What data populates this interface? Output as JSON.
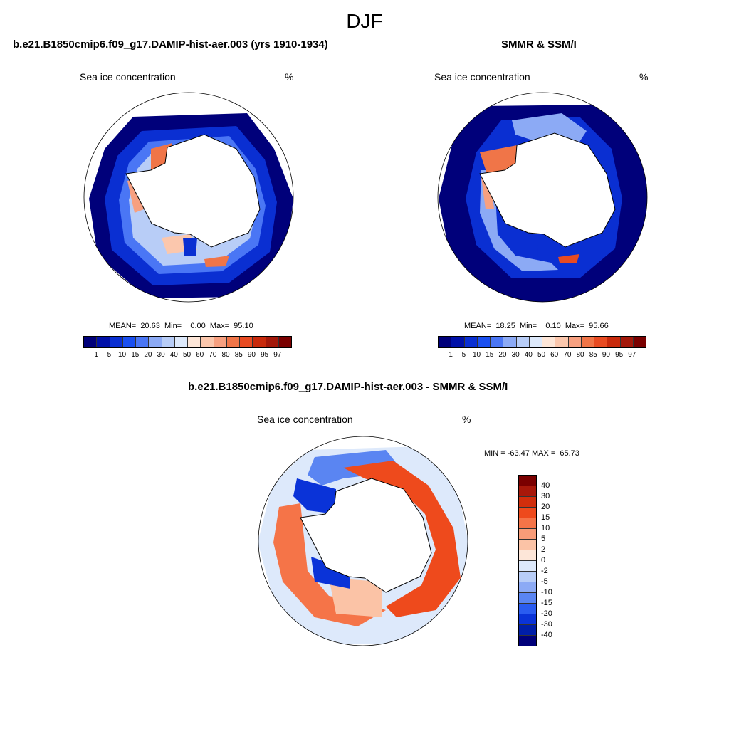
{
  "figure_title": "DJF",
  "panel_model": {
    "title": "b.e21.B1850cmip6.f09_g17.DAMIP-hist-aer.003 (yrs 1910-1934)",
    "variable": "Sea ice concentration",
    "unit": "%",
    "stats": "MEAN=  20.63  Min=    0.00  Max=  95.10"
  },
  "panel_obs": {
    "title": "SMMR & SSM/I",
    "variable": "Sea ice concentration",
    "unit": "%",
    "stats": "MEAN=  18.25  Min=    0.10  Max=  95.66"
  },
  "panel_diff": {
    "title": "b.e21.B1850cmip6.f09_g17.DAMIP-hist-aer.003 - SMMR & SSM/I",
    "variable": "Sea ice concentration",
    "unit": "%",
    "minmax": "MIN = -63.47 MAX =  65.73"
  },
  "conc_colorbar": {
    "labels": [
      "1",
      "5",
      "10",
      "15",
      "20",
      "30",
      "40",
      "50",
      "60",
      "70",
      "80",
      "85",
      "90",
      "95",
      "97"
    ],
    "colors": [
      "#00007a",
      "#0010a8",
      "#0a2fd2",
      "#1a4ff0",
      "#4a76f5",
      "#8caaf5",
      "#b8cdf7",
      "#dde9fb",
      "#fde6d8",
      "#fbc7ad",
      "#f7a080",
      "#f07548",
      "#e84b22",
      "#c82a0c",
      "#a3180a",
      "#7a0000"
    ]
  },
  "diff_colorbar": {
    "labels": [
      "40",
      "30",
      "20",
      "15",
      "10",
      "5",
      "2",
      "0",
      "-2",
      "-5",
      "-10",
      "-15",
      "-20",
      "-30",
      "-40"
    ],
    "colors": [
      "#7a0000",
      "#a8180a",
      "#d12e0c",
      "#ee4a1c",
      "#f57448",
      "#f99c78",
      "#fbc3a6",
      "#fde6d8",
      "#dde9fb",
      "#b8cdf7",
      "#8caaf5",
      "#5a85f2",
      "#2a5cf0",
      "#0a33d8",
      "#001ea8",
      "#00007a"
    ]
  }
}
